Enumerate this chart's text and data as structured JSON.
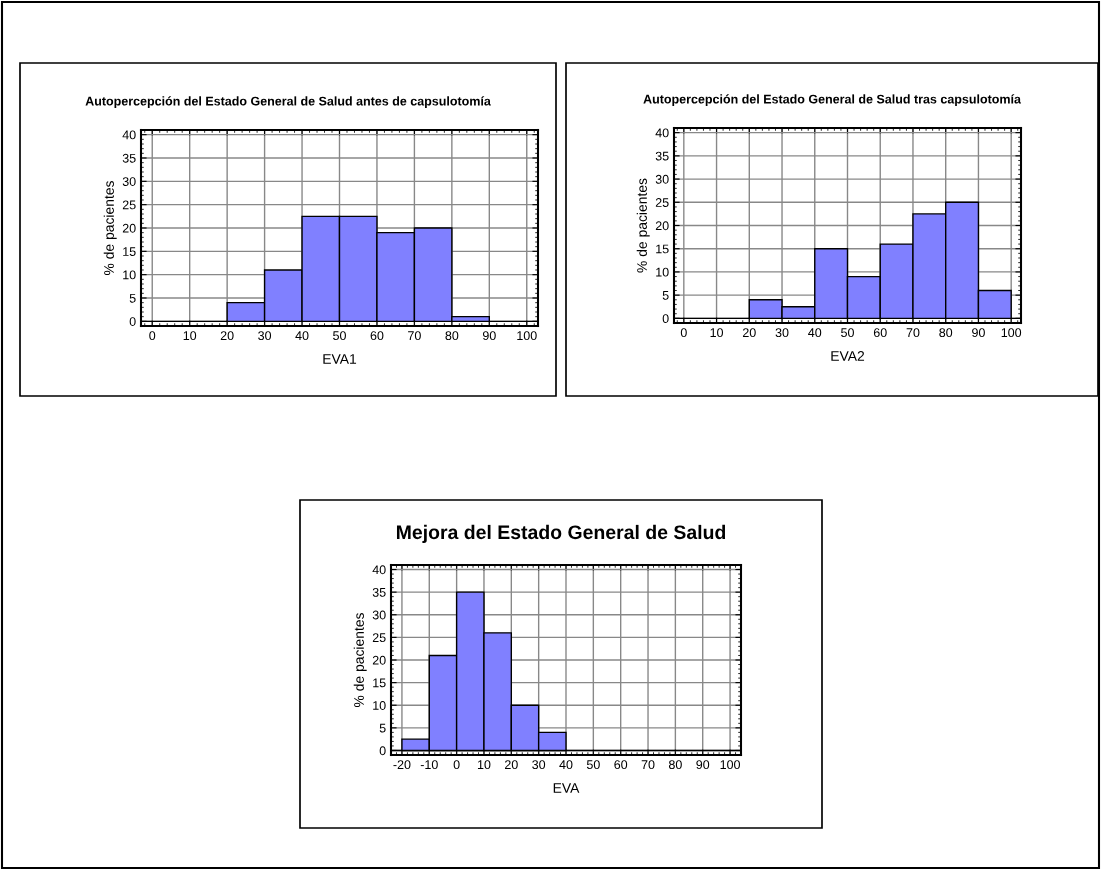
{
  "chart_data": [
    {
      "type": "histogram",
      "title": "Autopercepción del Estado General de Salud antes de capsulotomía",
      "xlabel": "EVA1",
      "ylabel": "% de pacientes",
      "bins": [
        0,
        10,
        20,
        30,
        40,
        50,
        60,
        70,
        80,
        90,
        100
      ],
      "values": [
        0,
        0,
        4,
        11,
        22.5,
        22.5,
        19,
        20,
        1,
        0
      ],
      "color": "#8080ff",
      "xlim": [
        -3,
        103
      ],
      "ylim": [
        -1,
        41
      ],
      "xticks": [
        0,
        10,
        20,
        30,
        40,
        50,
        60,
        70,
        80,
        90,
        100
      ],
      "yticks": [
        0,
        5,
        10,
        15,
        20,
        25,
        30,
        35,
        40
      ],
      "grid": true
    },
    {
      "type": "histogram",
      "title": "Autopercepción del Estado General de Salud tras capsulotomía",
      "xlabel": "EVA2",
      "ylabel": "% de pacientes",
      "bins": [
        0,
        10,
        20,
        30,
        40,
        50,
        60,
        70,
        80,
        90,
        100
      ],
      "values": [
        0,
        0,
        4,
        2.5,
        15,
        9,
        16,
        22.5,
        25,
        6
      ],
      "color": "#8080ff",
      "xlim": [
        -3,
        103
      ],
      "ylim": [
        -1,
        41
      ],
      "xticks": [
        0,
        10,
        20,
        30,
        40,
        50,
        60,
        70,
        80,
        90,
        100
      ],
      "yticks": [
        0,
        5,
        10,
        15,
        20,
        25,
        30,
        35,
        40
      ],
      "grid": true
    },
    {
      "type": "histogram",
      "title": "Mejora del Estado General de Salud",
      "xlabel": "EVA",
      "ylabel": "% de pacientes",
      "bins": [
        -20,
        -10,
        0,
        10,
        20,
        30,
        40,
        50,
        60,
        70,
        80,
        90,
        100
      ],
      "values": [
        2.5,
        21,
        35,
        26,
        10,
        4,
        0,
        0,
        0,
        0,
        0,
        0
      ],
      "color": "#8080ff",
      "xlim": [
        -24,
        104
      ],
      "ylim": [
        -1,
        41
      ],
      "xticks": [
        -20,
        -10,
        0,
        10,
        20,
        30,
        40,
        50,
        60,
        70,
        80,
        90,
        100
      ],
      "yticks": [
        0,
        5,
        10,
        15,
        20,
        25,
        30,
        35,
        40
      ],
      "grid": true
    }
  ]
}
